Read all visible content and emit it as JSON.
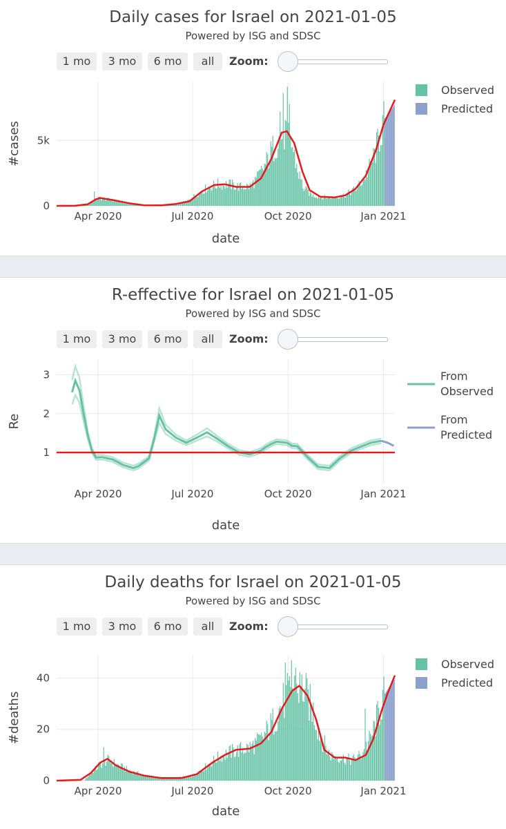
{
  "controls": {
    "buttons": [
      "1 mo",
      "3 mo",
      "6 mo",
      "all"
    ],
    "zoom_label": "Zoom:"
  },
  "colors": {
    "observed": "#66c2a5",
    "predicted": "#8da0cb",
    "fit": "#e41a1c",
    "reference": "#e41a1c"
  },
  "chart_data": [
    {
      "type": "bar",
      "title": "Daily cases for Israel on 2021-01-05",
      "subtitle": "Powered by ISG and SDSC",
      "xlabel": "date",
      "ylabel": "#cases",
      "xlim": [
        "2020-02-21",
        "2021-01-12"
      ],
      "ylim": [
        0,
        9500
      ],
      "x_ticks": [
        "2020-04-01",
        "2020-07-01",
        "2020-10-01",
        "2021-01-01"
      ],
      "x_tick_labels": [
        "Apr 2020",
        "Jul 2020",
        "Oct 2020",
        "Jan 2021"
      ],
      "y_ticks": [
        0,
        5000
      ],
      "y_tick_labels": [
        "0",
        "5k"
      ],
      "grid": true,
      "legend": {
        "position": "top-right",
        "entries": [
          "Observed",
          "Predicted"
        ]
      },
      "observed_keyframes": [
        [
          "2020-02-21",
          0
        ],
        [
          "2020-03-08",
          20
        ],
        [
          "2020-03-20",
          150
        ],
        [
          "2020-03-28",
          400
        ],
        [
          "2020-04-01",
          600
        ],
        [
          "2020-04-08",
          520
        ],
        [
          "2020-04-20",
          350
        ],
        [
          "2020-05-01",
          150
        ],
        [
          "2020-05-15",
          30
        ],
        [
          "2020-06-01",
          40
        ],
        [
          "2020-06-15",
          150
        ],
        [
          "2020-06-25",
          350
        ],
        [
          "2020-07-05",
          900
        ],
        [
          "2020-07-15",
          1400
        ],
        [
          "2020-07-25",
          1650
        ],
        [
          "2020-08-05",
          1650
        ],
        [
          "2020-08-15",
          1450
        ],
        [
          "2020-08-25",
          1500
        ],
        [
          "2020-09-01",
          2100
        ],
        [
          "2020-09-08",
          3000
        ],
        [
          "2020-09-15",
          4200
        ],
        [
          "2020-09-22",
          5200
        ],
        [
          "2020-09-30",
          5700
        ],
        [
          "2020-10-05",
          4500
        ],
        [
          "2020-10-10",
          2700
        ],
        [
          "2020-10-16",
          1300
        ],
        [
          "2020-10-25",
          800
        ],
        [
          "2020-11-05",
          650
        ],
        [
          "2020-11-15",
          650
        ],
        [
          "2020-11-25",
          850
        ],
        [
          "2020-12-05",
          1300
        ],
        [
          "2020-12-12",
          2000
        ],
        [
          "2020-12-20",
          3200
        ],
        [
          "2020-12-27",
          5000
        ],
        [
          "2021-01-01",
          6500
        ]
      ],
      "observed_spikes": [
        [
          "2020-03-28",
          1100
        ],
        [
          "2020-09-23",
          7200
        ],
        [
          "2020-09-26",
          8600
        ],
        [
          "2020-09-30",
          9100
        ],
        [
          "2020-10-02",
          7800
        ]
      ],
      "predicted": {
        "start": "2021-01-02",
        "end": "2021-01-12",
        "values": [
          6700,
          7800
        ]
      },
      "fit_line": [
        [
          "2020-02-21",
          0
        ],
        [
          "2020-03-10",
          10
        ],
        [
          "2020-03-22",
          120
        ],
        [
          "2020-03-30",
          500
        ],
        [
          "2020-04-03",
          600
        ],
        [
          "2020-04-15",
          450
        ],
        [
          "2020-05-01",
          200
        ],
        [
          "2020-05-15",
          50
        ],
        [
          "2020-06-01",
          40
        ],
        [
          "2020-06-15",
          150
        ],
        [
          "2020-06-28",
          350
        ],
        [
          "2020-07-10",
          1100
        ],
        [
          "2020-07-22",
          1600
        ],
        [
          "2020-08-01",
          1650
        ],
        [
          "2020-08-12",
          1450
        ],
        [
          "2020-08-25",
          1450
        ],
        [
          "2020-09-05",
          2100
        ],
        [
          "2020-09-15",
          3600
        ],
        [
          "2020-09-25",
          5600
        ],
        [
          "2020-09-30",
          5700
        ],
        [
          "2020-10-07",
          4800
        ],
        [
          "2020-10-15",
          2600
        ],
        [
          "2020-10-22",
          1200
        ],
        [
          "2020-11-01",
          700
        ],
        [
          "2020-11-15",
          650
        ],
        [
          "2020-11-25",
          800
        ],
        [
          "2020-12-05",
          1300
        ],
        [
          "2020-12-15",
          2300
        ],
        [
          "2020-12-25",
          4300
        ],
        [
          "2021-01-01",
          6200
        ],
        [
          "2021-01-12",
          8100
        ]
      ]
    },
    {
      "type": "line",
      "title": "R-effective for Israel on 2021-01-05",
      "subtitle": "Powered by ISG and SDSC",
      "xlabel": "date",
      "ylabel": "Re",
      "xlim": [
        "2020-02-21",
        "2021-01-12"
      ],
      "ylim": [
        0.2,
        3.4
      ],
      "x_ticks": [
        "2020-04-01",
        "2020-07-01",
        "2020-10-01",
        "2021-01-01"
      ],
      "x_tick_labels": [
        "Apr 2020",
        "Jul 2020",
        "Oct 2020",
        "Jan 2021"
      ],
      "y_ticks": [
        1,
        2,
        3
      ],
      "y_tick_labels": [
        "1",
        "2",
        "3"
      ],
      "grid": true,
      "reference_line": 1,
      "legend": {
        "position": "top-right",
        "entries": [
          "From Observed",
          "From Predicted"
        ]
      },
      "series": [
        {
          "name": "From Observed",
          "x": [
            "2020-03-07",
            "2020-03-10",
            "2020-03-14",
            "2020-03-18",
            "2020-03-22",
            "2020-03-26",
            "2020-03-30",
            "2020-04-05",
            "2020-04-15",
            "2020-04-25",
            "2020-05-05",
            "2020-05-10",
            "2020-05-15",
            "2020-05-20",
            "2020-05-25",
            "2020-05-30",
            "2020-06-05",
            "2020-06-15",
            "2020-06-25",
            "2020-07-05",
            "2020-07-15",
            "2020-07-25",
            "2020-08-05",
            "2020-08-15",
            "2020-08-25",
            "2020-09-05",
            "2020-09-10",
            "2020-09-15",
            "2020-09-20",
            "2020-09-30",
            "2020-10-05",
            "2020-10-10",
            "2020-10-20",
            "2020-10-30",
            "2020-11-10",
            "2020-11-20",
            "2020-12-01",
            "2020-12-10",
            "2020-12-20",
            "2020-12-30"
          ],
          "y": [
            2.55,
            2.85,
            2.6,
            2.0,
            1.45,
            1.05,
            0.87,
            0.88,
            0.82,
            0.68,
            0.6,
            0.65,
            0.75,
            0.85,
            1.35,
            1.95,
            1.6,
            1.38,
            1.25,
            1.38,
            1.52,
            1.35,
            1.15,
            1.0,
            0.95,
            1.05,
            1.15,
            1.22,
            1.28,
            1.25,
            1.17,
            1.16,
            0.88,
            0.63,
            0.6,
            0.85,
            1.05,
            1.15,
            1.25,
            1.3
          ]
        },
        {
          "name": "From Predicted",
          "x": [
            "2020-12-30",
            "2021-01-05",
            "2021-01-11"
          ],
          "y": [
            1.3,
            1.25,
            1.17
          ]
        }
      ]
    },
    {
      "type": "bar",
      "title": "Daily deaths for Israel on 2021-01-05",
      "subtitle": "Powered by ISG and SDSC",
      "xlabel": "date",
      "ylabel": "#deaths",
      "xlim": [
        "2020-02-21",
        "2021-01-12"
      ],
      "ylim": [
        0,
        49
      ],
      "x_ticks": [
        "2020-04-01",
        "2020-07-01",
        "2020-10-01",
        "2021-01-01"
      ],
      "x_tick_labels": [
        "Apr 2020",
        "Jul 2020",
        "Oct 2020",
        "Jan 2021"
      ],
      "y_ticks": [
        0,
        20,
        40
      ],
      "y_tick_labels": [
        "0",
        "20",
        "40"
      ],
      "grid": true,
      "legend": {
        "position": "top-right",
        "entries": [
          "Observed",
          "Predicted"
        ]
      },
      "observed_keyframes": [
        [
          "2020-02-21",
          0
        ],
        [
          "2020-03-18",
          0
        ],
        [
          "2020-03-25",
          3
        ],
        [
          "2020-04-02",
          6
        ],
        [
          "2020-04-10",
          8
        ],
        [
          "2020-04-20",
          6
        ],
        [
          "2020-05-01",
          4
        ],
        [
          "2020-05-15",
          2
        ],
        [
          "2020-06-01",
          1
        ],
        [
          "2020-06-15",
          1
        ],
        [
          "2020-07-01",
          2
        ],
        [
          "2020-07-15",
          6
        ],
        [
          "2020-07-25",
          9
        ],
        [
          "2020-08-05",
          11
        ],
        [
          "2020-08-15",
          12
        ],
        [
          "2020-08-25",
          13
        ],
        [
          "2020-09-05",
          16
        ],
        [
          "2020-09-15",
          22
        ],
        [
          "2020-09-25",
          30
        ],
        [
          "2020-10-05",
          36
        ],
        [
          "2020-10-15",
          36
        ],
        [
          "2020-10-25",
          27
        ],
        [
          "2020-11-01",
          17
        ],
        [
          "2020-11-10",
          10
        ],
        [
          "2020-11-20",
          9
        ],
        [
          "2020-12-01",
          8
        ],
        [
          "2020-12-10",
          10
        ],
        [
          "2020-12-20",
          17
        ],
        [
          "2021-01-01",
          33
        ]
      ],
      "observed_spikes": [
        [
          "2020-04-06",
          13
        ],
        [
          "2020-09-28",
          46
        ],
        [
          "2020-10-04",
          47
        ],
        [
          "2020-10-08",
          44
        ],
        [
          "2020-12-14",
          28
        ]
      ],
      "predicted": {
        "start": "2021-01-02",
        "end": "2021-01-12",
        "values": [
          34,
          40
        ]
      },
      "fit_line": [
        [
          "2020-02-21",
          0
        ],
        [
          "2020-03-15",
          0.3
        ],
        [
          "2020-03-25",
          3
        ],
        [
          "2020-04-03",
          7
        ],
        [
          "2020-04-10",
          8.5
        ],
        [
          "2020-04-18",
          6
        ],
        [
          "2020-05-01",
          3.5
        ],
        [
          "2020-05-15",
          2
        ],
        [
          "2020-06-01",
          1
        ],
        [
          "2020-06-20",
          1
        ],
        [
          "2020-07-05",
          2.5
        ],
        [
          "2020-07-20",
          7
        ],
        [
          "2020-08-01",
          10
        ],
        [
          "2020-08-12",
          12
        ],
        [
          "2020-08-25",
          12.5
        ],
        [
          "2020-09-05",
          14.5
        ],
        [
          "2020-09-15",
          19
        ],
        [
          "2020-09-25",
          28
        ],
        [
          "2020-10-05",
          35
        ],
        [
          "2020-10-12",
          37
        ],
        [
          "2020-10-20",
          33
        ],
        [
          "2020-10-28",
          24
        ],
        [
          "2020-11-05",
          12
        ],
        [
          "2020-11-15",
          9
        ],
        [
          "2020-11-25",
          9
        ],
        [
          "2020-12-05",
          8
        ],
        [
          "2020-12-15",
          10
        ],
        [
          "2020-12-22",
          16
        ],
        [
          "2020-12-30",
          27
        ],
        [
          "2021-01-05",
          34
        ],
        [
          "2021-01-12",
          41
        ]
      ]
    }
  ]
}
